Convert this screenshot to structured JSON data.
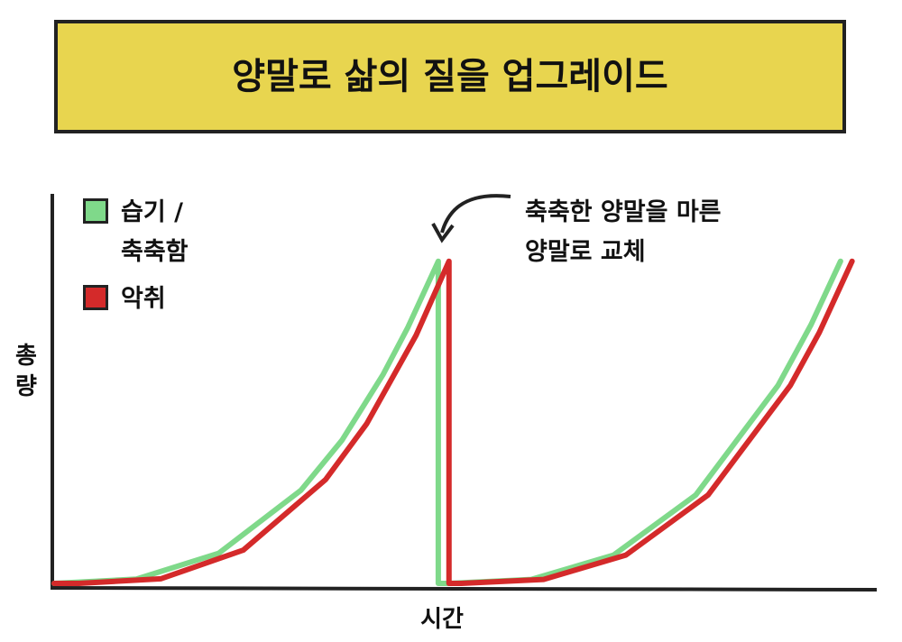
{
  "chart_data": {
    "type": "line",
    "title": "양말로 삶의 질을 업그레이드",
    "x_label": "시간",
    "y_label": "총량",
    "annotation": "축축한 양말을 마른 양말로 교체",
    "xlim": [
      0,
      100
    ],
    "ylim": [
      0,
      100
    ],
    "series": [
      {
        "name": "습기 / 축축함",
        "color": "#7fd98a",
        "x": [
          0,
          10,
          20,
          30,
          35,
          40,
          43,
          46.7,
          46.7,
          48,
          58,
          68,
          78,
          88,
          92,
          95.6
        ],
        "values": [
          0,
          1.2,
          8.4,
          26,
          40,
          58.4,
          71.5,
          90,
          0,
          0,
          1.1,
          7.9,
          24.7,
          55.3,
          72.2,
          90
        ]
      },
      {
        "name": "악취",
        "color": "#d42a2a",
        "x": [
          0,
          3,
          13,
          23,
          33,
          38,
          44,
          48,
          48,
          49.5,
          59.5,
          69.5,
          79.5,
          89.5,
          93,
          97
        ],
        "values": [
          0,
          0,
          1.3,
          9.3,
          29,
          44.6,
          69.3,
          90,
          0,
          0,
          1.1,
          7.9,
          24.7,
          55.3,
          70,
          90
        ]
      }
    ]
  }
}
